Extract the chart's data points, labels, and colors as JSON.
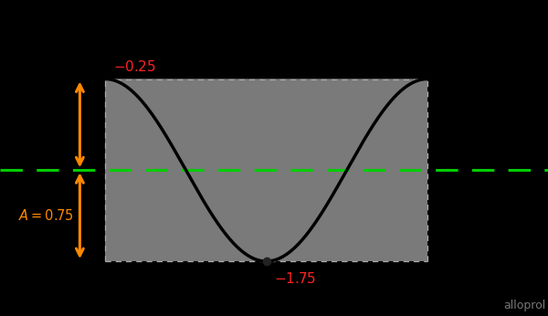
{
  "background_color": "#000000",
  "plot_bg_color": "#7a7a7a",
  "cosine_color": "#000000",
  "cosine_linewidth": 2.5,
  "midline_color": "#00cc00",
  "midline_y": -1.0,
  "amplitude": 0.75,
  "y_max": -0.25,
  "y_min": -1.75,
  "x_start": -3.14159265,
  "x_end": 3.14159265,
  "arrow_color": "#ff8800",
  "label_color_red": "#ff2222",
  "label_color_orange": "#ff8800",
  "top_label": "$-0.25$",
  "bot_label": "$-1.75$",
  "amplitude_label": "$A = 0.75$",
  "watermark": "alloprol",
  "xlim": [
    -5.2,
    5.5
  ],
  "ylim": [
    -2.2,
    0.4
  ],
  "figsize": [
    6.0,
    3.46
  ],
  "dpi": 100
}
